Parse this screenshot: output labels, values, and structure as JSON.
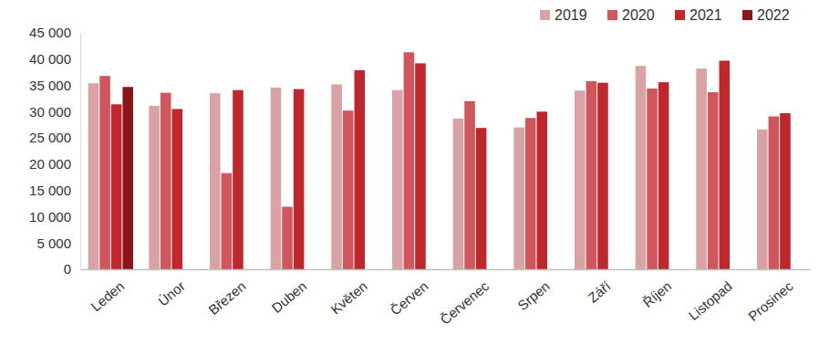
{
  "chart_data": {
    "type": "bar",
    "categories": [
      "Leden",
      "Únor",
      "Březen",
      "Duben",
      "Květen",
      "Červen",
      "Červenec",
      "Srpen",
      "Září",
      "Říjen",
      "Listopad",
      "Prosinec"
    ],
    "series": [
      {
        "name": "2019",
        "color": "#d9a3a6",
        "values": [
          35400,
          31100,
          33500,
          34600,
          35200,
          34100,
          28700,
          27000,
          34000,
          38700,
          38200,
          26600
        ]
      },
      {
        "name": "2020",
        "color": "#d0555c",
        "values": [
          36800,
          33600,
          18300,
          11900,
          30200,
          41300,
          32000,
          28800,
          35800,
          34400,
          33700,
          29100
        ]
      },
      {
        "name": "2021",
        "color": "#c0272d",
        "values": [
          31400,
          30500,
          34100,
          34300,
          37900,
          39200,
          26900,
          30000,
          35500,
          35600,
          39700,
          29700
        ]
      },
      {
        "name": "2022",
        "color": "#8b1518",
        "values": [
          34700,
          null,
          null,
          null,
          null,
          null,
          null,
          null,
          null,
          null,
          null,
          null
        ]
      }
    ],
    "ylim": [
      0,
      45000
    ],
    "yticks": [
      0,
      {
        "value": 5000,
        "label": "5 000"
      },
      {
        "value": 10000,
        "label": "10 000"
      },
      {
        "value": 15000,
        "label": "15 000"
      },
      {
        "value": 20000,
        "label": "20 000"
      },
      {
        "value": 25000,
        "label": "25 000"
      },
      {
        "value": 30000,
        "label": "30 000"
      },
      {
        "value": 35000,
        "label": "35 000"
      },
      {
        "value": 40000,
        "label": "40 000"
      },
      {
        "value": 45000,
        "label": "45 000"
      }
    ],
    "grid": false,
    "legend": "top-right"
  }
}
